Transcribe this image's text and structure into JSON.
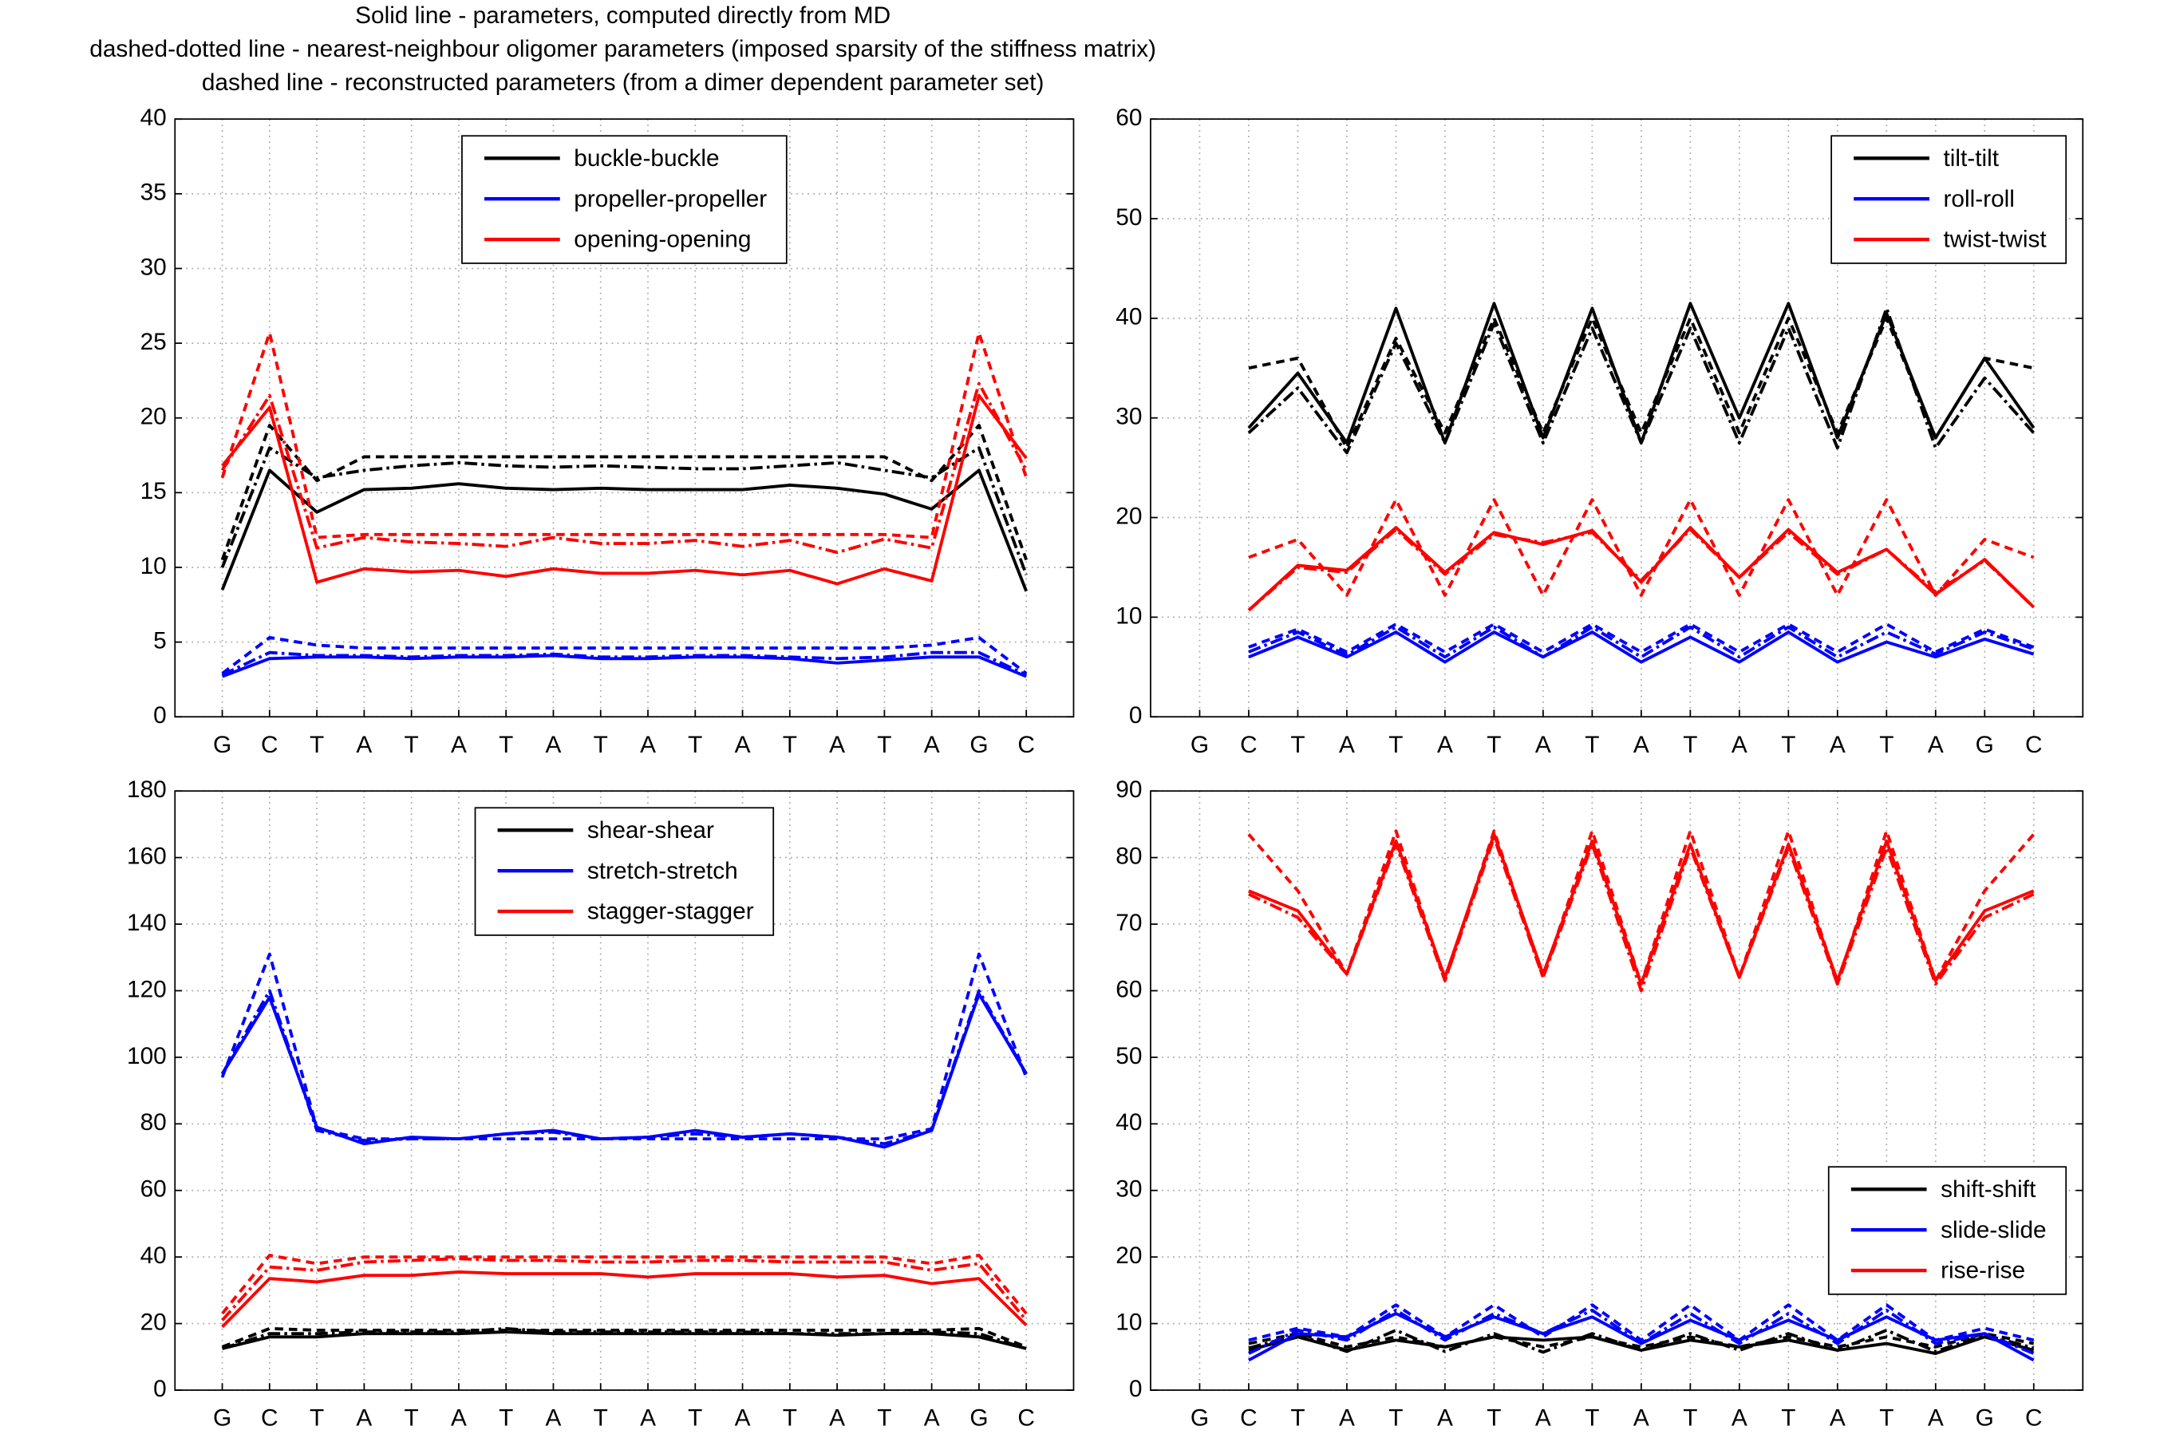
{
  "title_lines": [
    "Solid line - parameters, computed directly from MD",
    "dashed-dotted line - nearest-neighbour oligomer parameters (imposed sparsity of the stiffness matrix)",
    "dashed line - reconstructed parameters (from a dimer dependent parameter set)"
  ],
  "chart_data": [
    {
      "type": "line",
      "categories": [
        "G",
        "C",
        "T",
        "A",
        "T",
        "A",
        "T",
        "A",
        "T",
        "A",
        "T",
        "A",
        "T",
        "A",
        "T",
        "A",
        "G",
        "C"
      ],
      "ylim": [
        0,
        40
      ],
      "yticks": [
        0,
        5,
        10,
        15,
        20,
        25,
        30,
        35,
        40
      ],
      "grid": true,
      "legend": "upper center",
      "series": [
        {
          "name": "buckle-buckle",
          "color": "#000000",
          "values": [
            8.5,
            16.5,
            13.7,
            15.2,
            15.3,
            15.6,
            15.3,
            15.2,
            15.3,
            15.2,
            15.2,
            15.2,
            15.5,
            15.3,
            14.9,
            13.9,
            16.5,
            8.4
          ],
          "nn_values": [
            10,
            18,
            16,
            16.5,
            16.8,
            17,
            16.8,
            16.7,
            16.8,
            16.7,
            16.6,
            16.6,
            16.8,
            17,
            16.5,
            16,
            18,
            9.5
          ],
          "reconstructed_values": [
            10.5,
            19.5,
            15.8,
            17.4,
            17.4,
            17.4,
            17.4,
            17.4,
            17.4,
            17.4,
            17.4,
            17.4,
            17.4,
            17.4,
            17.4,
            15.8,
            19.5,
            10.5
          ]
        },
        {
          "name": "propeller-propeller",
          "color": "#0000ff",
          "values": [
            2.7,
            3.9,
            4.0,
            4.0,
            3.9,
            4.0,
            4.0,
            4.1,
            3.9,
            3.9,
            4.0,
            4.0,
            3.9,
            3.6,
            3.8,
            4.0,
            4.0,
            2.7
          ],
          "nn_values": [
            2.8,
            4.3,
            4.1,
            4.1,
            4.0,
            4.1,
            4.1,
            4.2,
            4.0,
            4.0,
            4.1,
            4.1,
            4.0,
            3.9,
            4.0,
            4.3,
            4.3,
            2.8
          ],
          "reconstructed_values": [
            2.9,
            5.3,
            4.8,
            4.6,
            4.6,
            4.6,
            4.6,
            4.6,
            4.6,
            4.6,
            4.6,
            4.6,
            4.6,
            4.6,
            4.6,
            4.8,
            5.3,
            2.9
          ]
        },
        {
          "name": "opening-opening",
          "color": "#ff0000",
          "values": [
            16.8,
            20.7,
            9.0,
            9.9,
            9.7,
            9.8,
            9.4,
            9.9,
            9.6,
            9.6,
            9.8,
            9.5,
            9.8,
            8.9,
            9.9,
            9.1,
            21.5,
            17.3
          ],
          "nn_values": [
            16.5,
            21.5,
            11.3,
            12.0,
            11.7,
            11.6,
            11.4,
            12.0,
            11.6,
            11.6,
            11.8,
            11.4,
            11.8,
            11.0,
            11.9,
            11.3,
            22.3,
            16.5
          ],
          "reconstructed_values": [
            16,
            25.7,
            12,
            12.2,
            12.2,
            12.2,
            12.2,
            12.2,
            12.2,
            12.2,
            12.2,
            12.2,
            12.2,
            12.2,
            12.2,
            12,
            25.7,
            16
          ]
        }
      ]
    },
    {
      "type": "line",
      "categories": [
        "G",
        "C",
        "T",
        "A",
        "T",
        "A",
        "T",
        "A",
        "T",
        "A",
        "T",
        "A",
        "T",
        "A",
        "T",
        "A",
        "G",
        "C"
      ],
      "ylim": [
        0,
        60
      ],
      "yticks": [
        0,
        10,
        20,
        30,
        40,
        50,
        60
      ],
      "grid": true,
      "legend": "upper right",
      "series": [
        {
          "name": "tilt-tilt",
          "color": "#000000",
          "values": [
            null,
            29,
            34.5,
            27.5,
            41,
            27.5,
            41.5,
            28,
            41,
            27.5,
            41.5,
            30,
            41.5,
            28,
            40.5,
            28,
            36,
            29
          ],
          "nn_values": [
            null,
            28.5,
            33,
            26.5,
            37.5,
            27.5,
            39.5,
            27.5,
            39,
            27.5,
            39,
            27.5,
            39,
            27,
            41,
            27,
            34,
            28.5
          ],
          "reconstructed_values": [
            null,
            35,
            36,
            27,
            38,
            28.5,
            40,
            28.5,
            40,
            28.5,
            40,
            28.5,
            40,
            28.5,
            40,
            28,
            36,
            35
          ]
        },
        {
          "name": "roll-roll",
          "color": "#0000ff",
          "values": [
            null,
            6,
            8,
            6,
            8.5,
            5.5,
            8.5,
            6,
            8.5,
            5.5,
            8,
            5.5,
            8.5,
            5.5,
            7.5,
            6,
            7.8,
            6.3
          ],
          "nn_values": [
            null,
            6.5,
            8.5,
            6.2,
            9,
            6,
            9,
            6,
            9,
            6,
            9,
            6,
            9,
            6,
            8.5,
            6.3,
            8.5,
            6.8
          ],
          "reconstructed_values": [
            null,
            7,
            8.8,
            6.5,
            9.3,
            6.5,
            9.3,
            6.5,
            9.3,
            6.5,
            9.3,
            6.5,
            9.3,
            6.5,
            9.3,
            6.5,
            8.8,
            7
          ]
        },
        {
          "name": "twist-twist",
          "color": "#ff0000",
          "values": [
            null,
            10.7,
            15.2,
            14.7,
            19,
            14.5,
            18.5,
            17.3,
            18.7,
            13.5,
            19,
            14,
            18.8,
            14.5,
            16.8,
            12.3,
            15.8,
            11
          ],
          "nn_values": [
            null,
            10.7,
            15,
            14.5,
            18.8,
            14.3,
            18.3,
            17.5,
            18.5,
            13.7,
            18.8,
            14,
            18.5,
            14.3,
            16.8,
            12.5,
            15.7,
            11
          ],
          "reconstructed_values": [
            null,
            16,
            17.8,
            12.2,
            21.8,
            12.2,
            21.8,
            12.2,
            21.8,
            12.2,
            21.8,
            12.2,
            21.8,
            12.2,
            21.8,
            12.2,
            17.8,
            16
          ]
        }
      ]
    },
    {
      "type": "line",
      "categories": [
        "G",
        "C",
        "T",
        "A",
        "T",
        "A",
        "T",
        "A",
        "T",
        "A",
        "T",
        "A",
        "T",
        "A",
        "T",
        "A",
        "G",
        "C"
      ],
      "ylim": [
        0,
        180
      ],
      "yticks": [
        0,
        20,
        40,
        60,
        80,
        100,
        120,
        140,
        160,
        180
      ],
      "grid": true,
      "legend": "upper center",
      "series": [
        {
          "name": "shear-shear",
          "color": "#000000",
          "values": [
            12.5,
            16,
            16,
            17,
            17,
            17,
            17.5,
            17,
            17,
            17,
            17,
            17,
            17,
            16.5,
            17,
            17,
            16,
            12.5
          ],
          "nn_values": [
            12.5,
            17,
            17,
            17.5,
            17.5,
            17.5,
            18.5,
            17.5,
            17.5,
            17.5,
            17.5,
            17.5,
            17,
            17,
            17,
            17.5,
            17,
            12.5
          ],
          "reconstructed_values": [
            13,
            18.5,
            18,
            18,
            18,
            18,
            18,
            18,
            18,
            18,
            18,
            18,
            18,
            18,
            18,
            18,
            18.5,
            13
          ]
        },
        {
          "name": "stretch-stretch",
          "color": "#0000ff",
          "values": [
            95,
            118,
            79,
            74,
            76,
            75.5,
            77,
            78,
            75.5,
            76,
            78,
            76,
            77,
            76,
            73,
            78,
            119,
            95
          ],
          "nn_values": [
            95,
            120,
            78,
            75,
            75.5,
            75.5,
            77,
            77.5,
            75.5,
            76,
            77,
            76,
            77,
            76,
            74,
            78,
            120,
            95
          ],
          "reconstructed_values": [
            94,
            131,
            78.5,
            75.5,
            75.5,
            75.5,
            75.5,
            75.5,
            75.5,
            75.5,
            75.5,
            75.5,
            75.5,
            75.5,
            75.5,
            78.5,
            131,
            94
          ]
        },
        {
          "name": "stagger-stagger",
          "color": "#ff0000",
          "values": [
            19,
            33.5,
            32.5,
            34.5,
            34.5,
            35.5,
            35,
            35,
            35,
            34,
            35,
            35,
            35,
            34,
            34.5,
            32,
            33.5,
            19.5
          ],
          "nn_values": [
            21,
            37,
            36,
            38.5,
            39,
            39.5,
            39,
            39,
            38.5,
            38.5,
            39,
            39,
            38.5,
            38.5,
            38.5,
            36,
            38,
            21
          ],
          "reconstructed_values": [
            23,
            40.5,
            38,
            40,
            40,
            40,
            40,
            40,
            40,
            40,
            40,
            40,
            40,
            40,
            40,
            38,
            40.5,
            23
          ]
        }
      ]
    },
    {
      "type": "line",
      "categories": [
        "G",
        "C",
        "T",
        "A",
        "T",
        "A",
        "T",
        "A",
        "T",
        "A",
        "T",
        "A",
        "T",
        "A",
        "T",
        "A",
        "G",
        "C"
      ],
      "ylim": [
        0,
        90
      ],
      "yticks": [
        0,
        10,
        20,
        30,
        40,
        50,
        60,
        70,
        80,
        90
      ],
      "grid": true,
      "legend": "center right",
      "series": [
        {
          "name": "shift-shift",
          "color": "#000000",
          "values": [
            null,
            6,
            8,
            6,
            7.5,
            6.5,
            8,
            7.5,
            8,
            6,
            7.5,
            6.5,
            7.5,
            6,
            7,
            5.5,
            8,
            6
          ],
          "nn_values": [
            null,
            6.3,
            8.3,
            5.8,
            9,
            5.8,
            8.5,
            5.7,
            8.5,
            6,
            8.5,
            6,
            8.5,
            6,
            9,
            5.8,
            8.3,
            6.3
          ],
          "reconstructed_values": [
            null,
            7,
            8.5,
            6.5,
            8,
            6.5,
            8,
            6.5,
            8,
            6.5,
            8,
            6.5,
            8,
            6.5,
            8,
            6.5,
            8.5,
            7
          ]
        },
        {
          "name": "slide-slide",
          "color": "#0000ff",
          "values": [
            null,
            4.5,
            8.5,
            8,
            11.5,
            8,
            11,
            8.5,
            11,
            7,
            10.5,
            7.5,
            10.5,
            7.5,
            11,
            7.5,
            8.5,
            4.5
          ],
          "nn_values": [
            null,
            5.5,
            9,
            7.5,
            12,
            7.5,
            11.5,
            8.5,
            12,
            7,
            11.5,
            7,
            11.5,
            7,
            12,
            7,
            8.5,
            5.5
          ],
          "reconstructed_values": [
            null,
            7.5,
            9.3,
            8,
            12.8,
            8,
            12.8,
            8,
            12.8,
            7.5,
            12.8,
            7.5,
            12.8,
            7.5,
            12.8,
            7.5,
            9.3,
            7.5
          ]
        },
        {
          "name": "rise-rise",
          "color": "#ff0000",
          "values": [
            null,
            75,
            72,
            62.5,
            82.5,
            62,
            83.5,
            62.5,
            82.5,
            61,
            82,
            62,
            82,
            61.5,
            82.5,
            61.5,
            72,
            75
          ],
          "nn_values": [
            null,
            74.5,
            71,
            62.5,
            82,
            61.5,
            83,
            62,
            82,
            60,
            81.5,
            62,
            81.5,
            61,
            81.5,
            61,
            71,
            74.5
          ],
          "reconstructed_values": [
            null,
            83.5,
            75,
            62.5,
            84,
            61.5,
            84,
            62,
            84,
            61,
            84,
            62,
            84,
            61,
            84,
            61.5,
            75,
            83.5
          ]
        }
      ]
    }
  ]
}
